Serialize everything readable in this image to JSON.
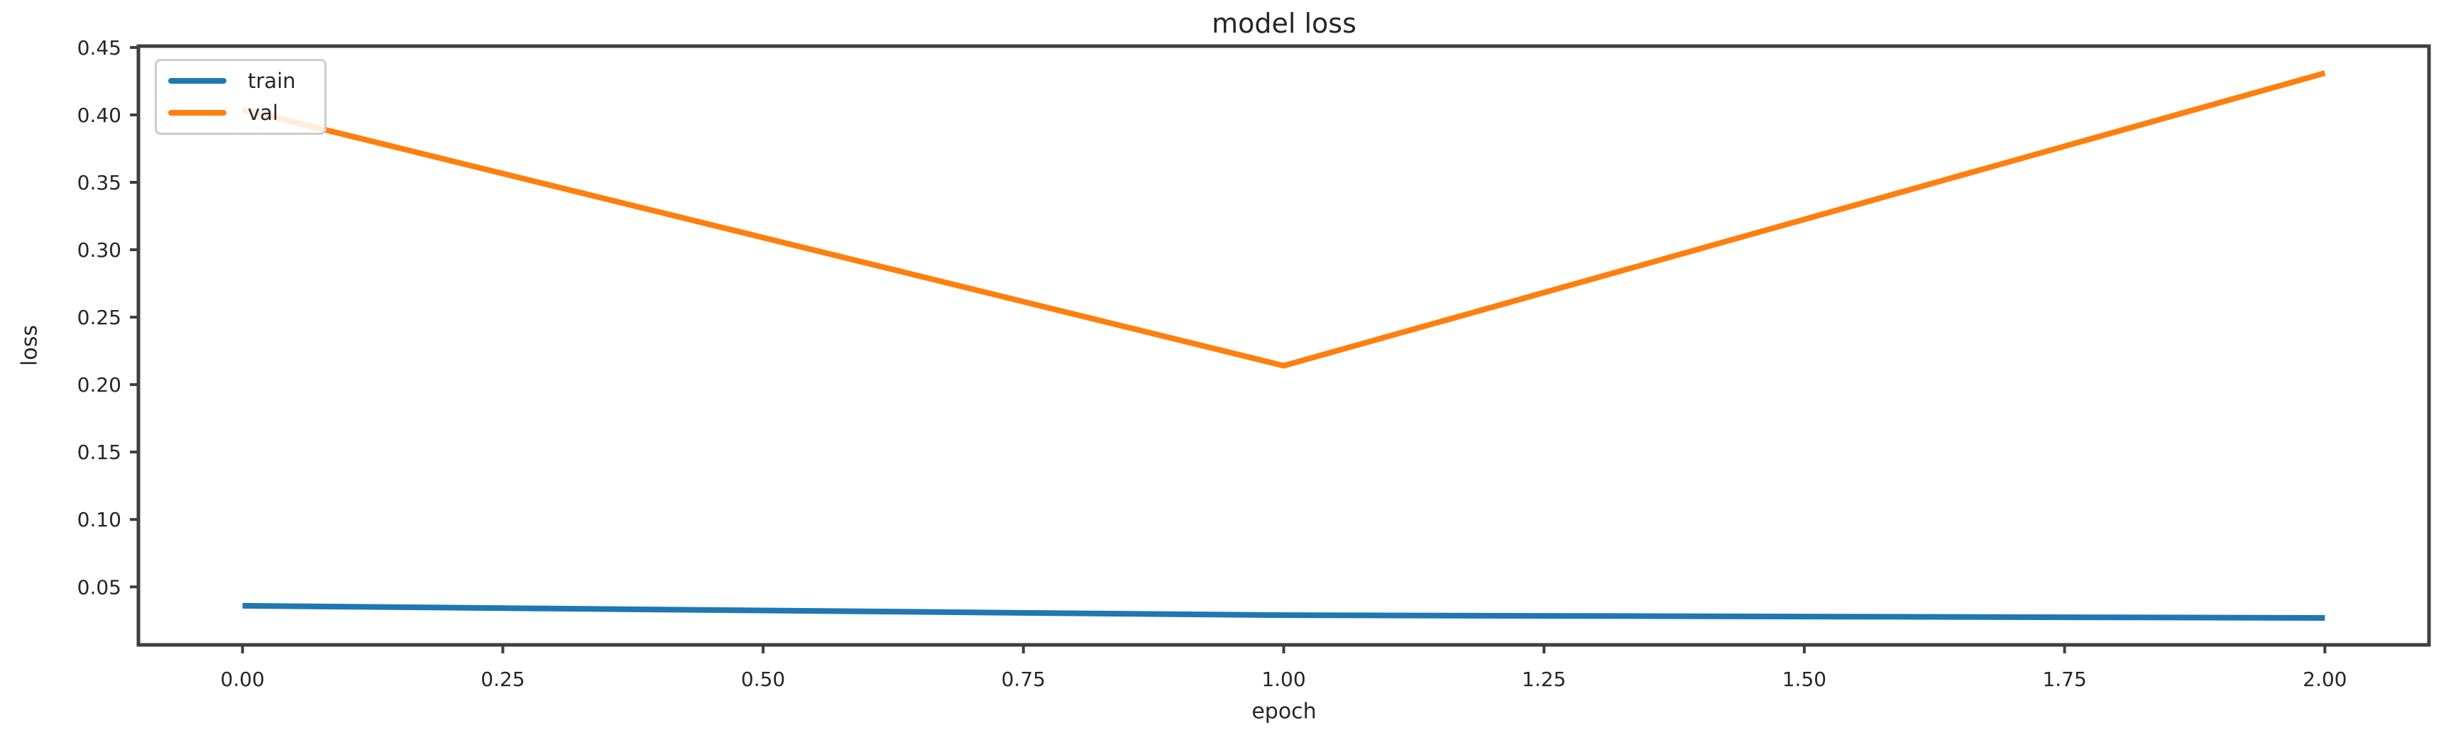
{
  "figure": {
    "background": "#ffffff",
    "axes_color": "#3f3f3f",
    "text_color": "#262626"
  },
  "chart_data": {
    "type": "line",
    "title": "model loss",
    "xlabel": "epoch",
    "ylabel": "loss",
    "x": [
      0,
      1,
      2
    ],
    "series": [
      {
        "name": "train",
        "color": "#1f77b4",
        "values": [
          0.036,
          0.029,
          0.027
        ]
      },
      {
        "name": "val",
        "color": "#ff7f0e",
        "values": [
          0.404,
          0.214,
          0.431
        ]
      }
    ],
    "xticks": [
      0.0,
      0.25,
      0.5,
      0.75,
      1.0,
      1.25,
      1.5,
      1.75,
      2.0
    ],
    "yticks": [
      0.05,
      0.1,
      0.15,
      0.2,
      0.25,
      0.3,
      0.35,
      0.4,
      0.45
    ],
    "xlim": [
      -0.1,
      2.1
    ],
    "ylim": [
      0.007,
      0.451
    ],
    "grid": false,
    "legend_position": "upper left",
    "tick_decimals": 2
  }
}
